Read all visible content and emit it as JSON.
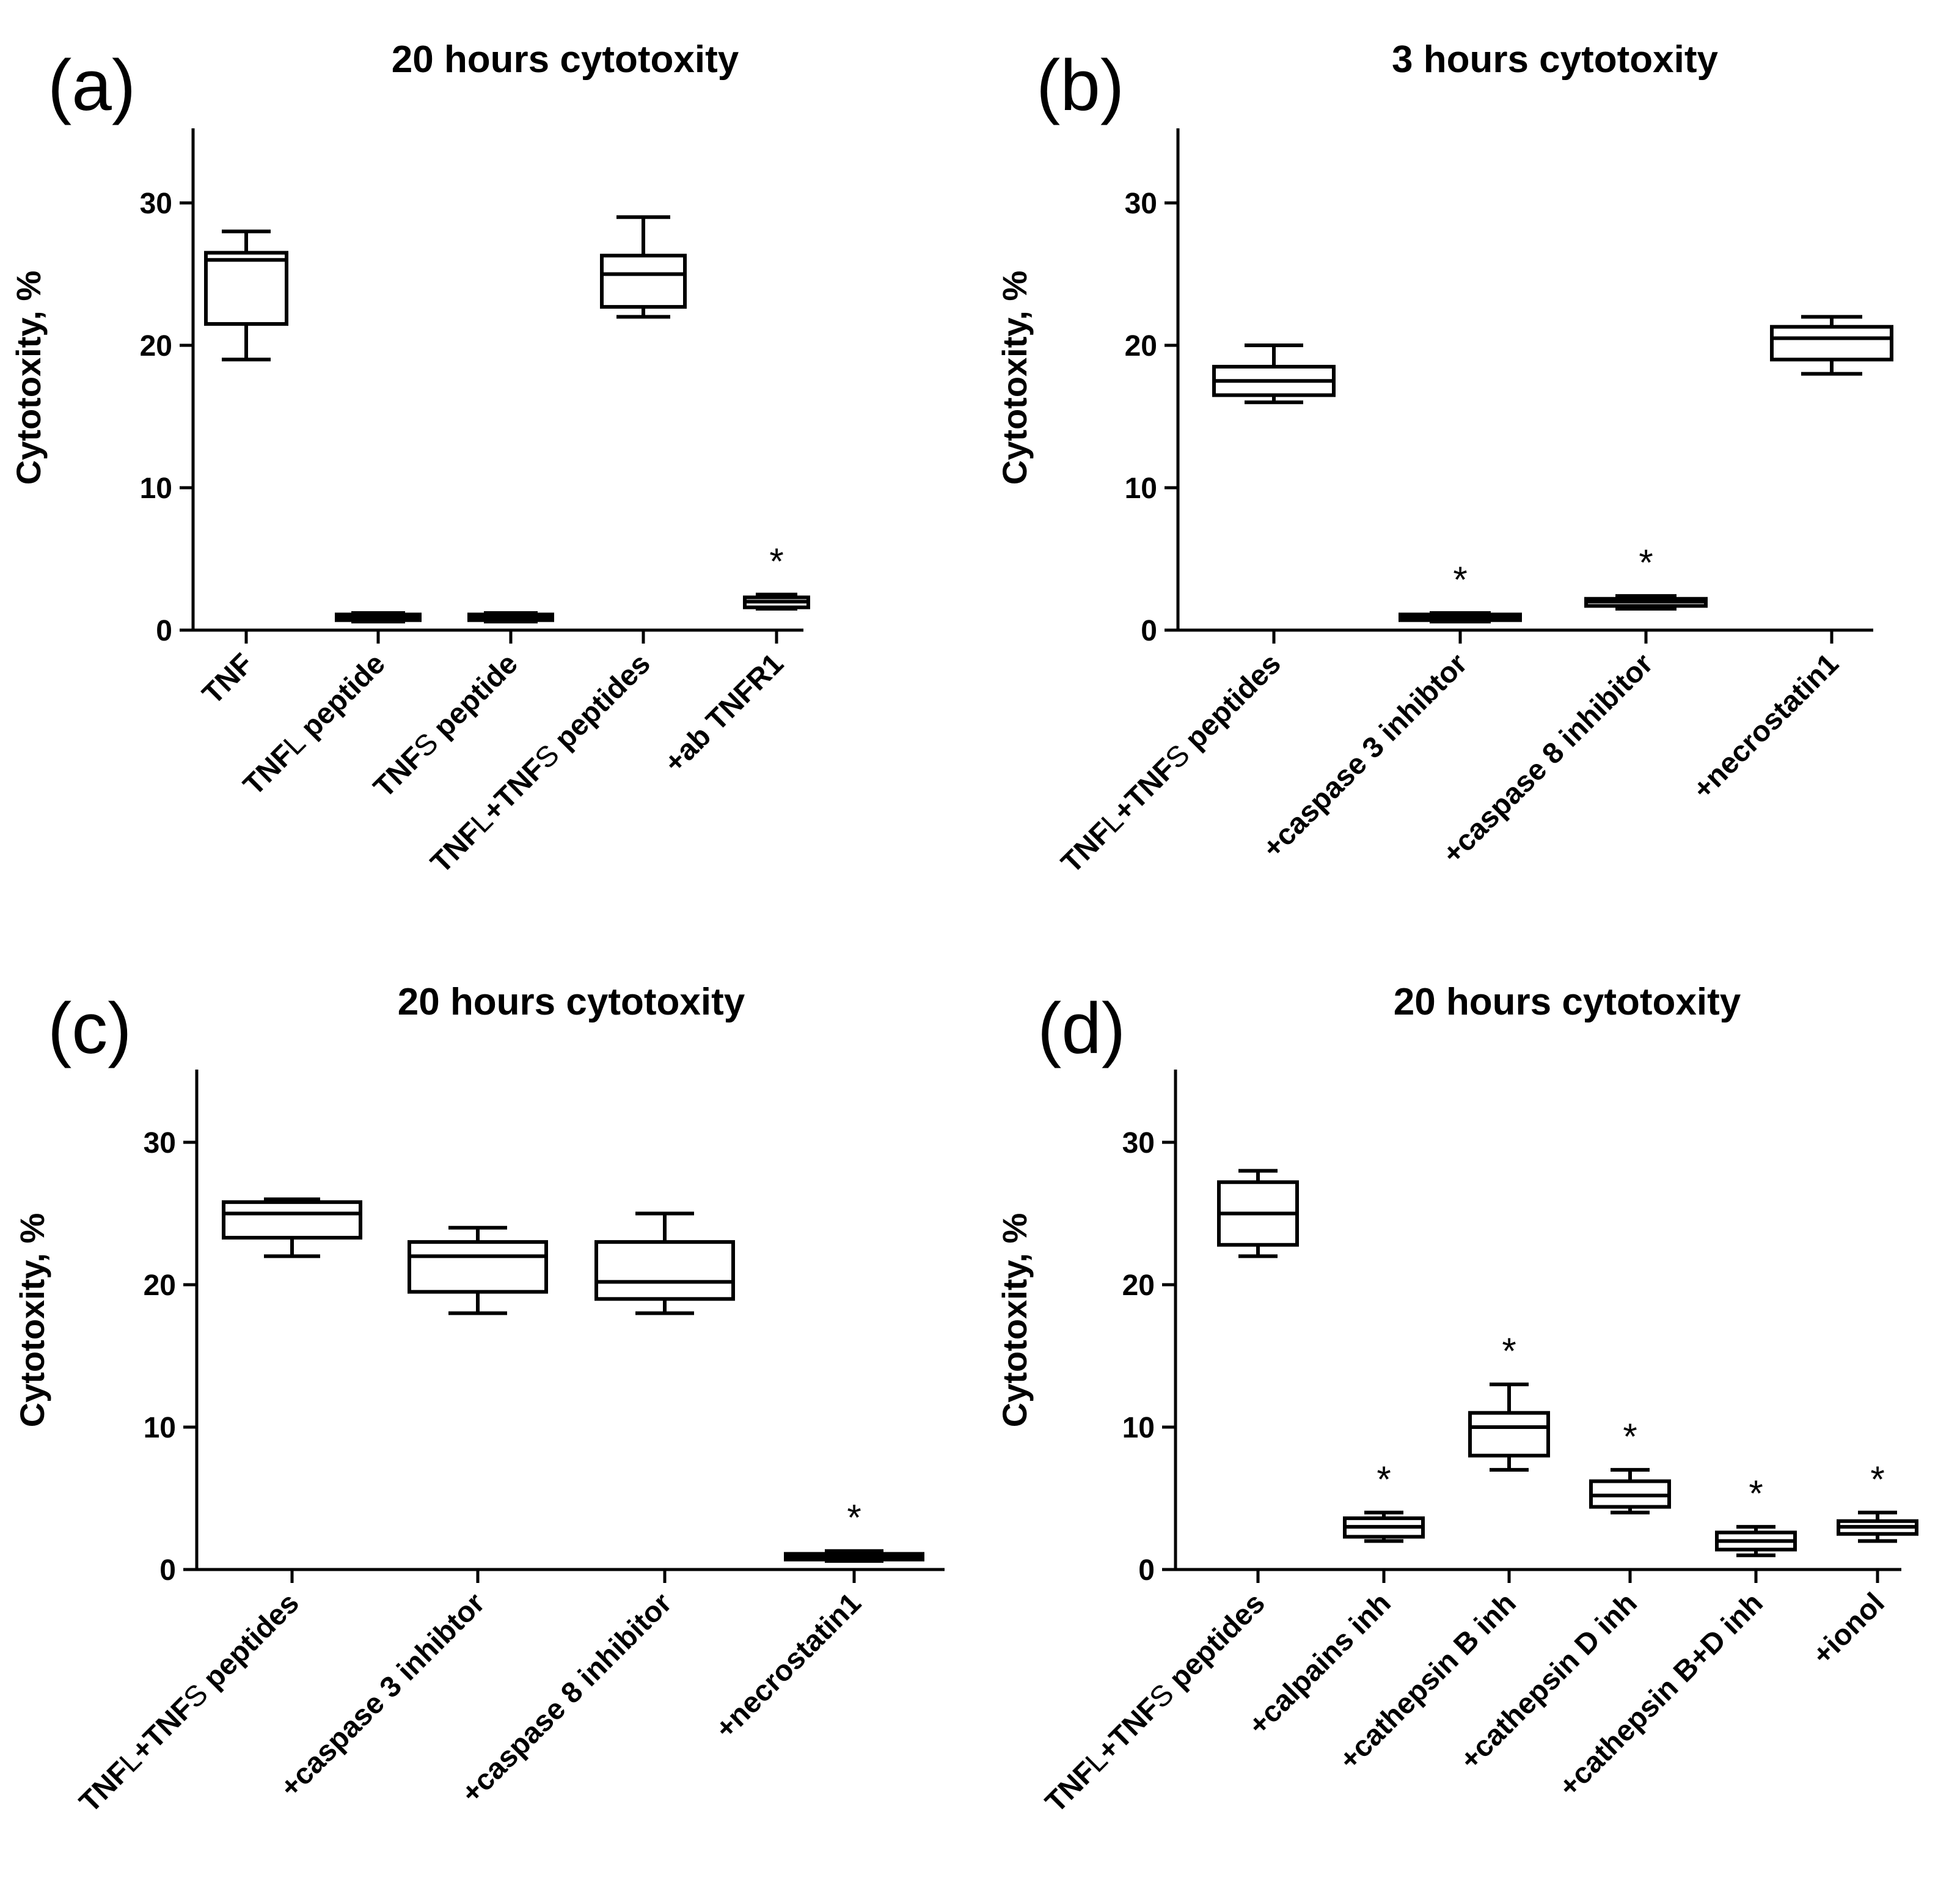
{
  "chart_data": [
    {
      "type": "box",
      "panel": "(a)",
      "title": "20 hours cytotoxity",
      "ylabel": "Cytotoxity, %",
      "xlabel": "",
      "ylim": [
        0,
        35
      ],
      "yticks": [
        "0",
        "10",
        "20",
        "30"
      ],
      "categories": [
        {
          "label": [
            [
              "TNF",
              false
            ]
          ],
          "min": 19,
          "q1": 21.5,
          "median": 26,
          "q3": 26.5,
          "max": 28,
          "star": false
        },
        {
          "label": [
            [
              "TNF",
              false
            ],
            [
              "L",
              true
            ],
            [
              " peptide",
              false
            ]
          ],
          "min": 0.6,
          "q1": 0.7,
          "median": 0.9,
          "q3": 1.1,
          "max": 1.2,
          "star": false
        },
        {
          "label": [
            [
              "TNF",
              false
            ],
            [
              "S",
              true
            ],
            [
              " peptide",
              false
            ]
          ],
          "min": 0.6,
          "q1": 0.7,
          "median": 0.9,
          "q3": 1.1,
          "max": 1.2,
          "star": false
        },
        {
          "label": [
            [
              "TNF",
              false
            ],
            [
              "L",
              true
            ],
            [
              "+TNF",
              false
            ],
            [
              "S",
              true
            ],
            [
              " peptides",
              false
            ]
          ],
          "min": 22,
          "q1": 22.7,
          "median": 25,
          "q3": 26.3,
          "max": 29,
          "star": false
        },
        {
          "label": [
            [
              "+ab TNFR1",
              false
            ]
          ],
          "min": 1.5,
          "q1": 1.6,
          "median": 2,
          "q3": 2.3,
          "max": 2.5,
          "star": true
        }
      ]
    },
    {
      "type": "box",
      "panel": "(b)",
      "title": "3 hours cytotoxity",
      "ylabel": "Cytotoxity, %",
      "xlabel": "",
      "ylim": [
        0,
        35
      ],
      "yticks": [
        "0",
        "10",
        "20",
        "30"
      ],
      "categories": [
        {
          "label": [
            [
              "TNF",
              false
            ],
            [
              "L",
              true
            ],
            [
              "+TNF",
              false
            ],
            [
              "S",
              true
            ],
            [
              " peptides",
              false
            ]
          ],
          "min": 16,
          "q1": 16.5,
          "median": 17.5,
          "q3": 18.5,
          "max": 20,
          "star": false
        },
        {
          "label": [
            [
              "+caspase 3 inhibtor",
              false
            ]
          ],
          "min": 0.6,
          "q1": 0.7,
          "median": 0.9,
          "q3": 1.1,
          "max": 1.2,
          "star": true
        },
        {
          "label": [
            [
              "+caspase 8 inhibitor",
              false
            ]
          ],
          "min": 1.5,
          "q1": 1.7,
          "median": 2,
          "q3": 2.2,
          "max": 2.4,
          "star": true
        },
        {
          "label": [
            [
              "+necrostatin1",
              false
            ]
          ],
          "min": 18,
          "q1": 19,
          "median": 20.5,
          "q3": 21.3,
          "max": 22,
          "star": false
        }
      ]
    },
    {
      "type": "box",
      "panel": "(c)",
      "title": "20 hours cytotoxity",
      "ylabel": "Cytotoxity, %",
      "xlabel": "",
      "ylim": [
        0,
        35
      ],
      "yticks": [
        "0",
        "10",
        "20",
        "30"
      ],
      "categories": [
        {
          "label": [
            [
              "TNF",
              false
            ],
            [
              "L",
              true
            ],
            [
              "+TNF",
              false
            ],
            [
              "S",
              true
            ],
            [
              " peptides",
              false
            ]
          ],
          "min": 22,
          "q1": 23.3,
          "median": 25,
          "q3": 25.8,
          "max": 26,
          "star": false
        },
        {
          "label": [
            [
              "+caspase 3 inhibtor",
              false
            ]
          ],
          "min": 18,
          "q1": 19.5,
          "median": 22,
          "q3": 23,
          "max": 24,
          "star": false
        },
        {
          "label": [
            [
              "+caspase 8 inhibitor",
              false
            ]
          ],
          "min": 18,
          "q1": 19,
          "median": 20.2,
          "q3": 23,
          "max": 25,
          "star": false
        },
        {
          "label": [
            [
              "+necrostatin1",
              false
            ]
          ],
          "min": 0.6,
          "q1": 0.7,
          "median": 0.9,
          "q3": 1.1,
          "max": 1.3,
          "star": true
        }
      ]
    },
    {
      "type": "box",
      "panel": "(d)",
      "title": "20 hours cytotoxity",
      "ylabel": "Cytotoxity, %",
      "xlabel": "",
      "ylim": [
        0,
        35
      ],
      "yticks": [
        "0",
        "10",
        "20",
        "30"
      ],
      "categories": [
        {
          "label": [
            [
              "TNF",
              false
            ],
            [
              "L",
              true
            ],
            [
              "+TNF",
              false
            ],
            [
              "S",
              true
            ],
            [
              " peptides",
              false
            ]
          ],
          "min": 22,
          "q1": 22.8,
          "median": 25,
          "q3": 27.2,
          "max": 28,
          "star": false
        },
        {
          "label": [
            [
              "+calpains inh",
              false
            ]
          ],
          "min": 2,
          "q1": 2.3,
          "median": 3,
          "q3": 3.6,
          "max": 4,
          "star": true
        },
        {
          "label": [
            [
              "+cathepsin B inh",
              false
            ]
          ],
          "min": 7,
          "q1": 8,
          "median": 10,
          "q3": 11,
          "max": 13,
          "star": true
        },
        {
          "label": [
            [
              "+cathepsin D inh",
              false
            ]
          ],
          "min": 4,
          "q1": 4.4,
          "median": 5.2,
          "q3": 6.2,
          "max": 7,
          "star": true
        },
        {
          "label": [
            [
              "+cathepsin B+D inh",
              false
            ]
          ],
          "min": 1,
          "q1": 1.4,
          "median": 2,
          "q3": 2.6,
          "max": 3,
          "star": true
        },
        {
          "label": [
            [
              "+ionol",
              false
            ]
          ],
          "min": 2,
          "q1": 2.5,
          "median": 3,
          "q3": 3.4,
          "max": 4,
          "star": true
        }
      ]
    }
  ],
  "significance_mark": "*"
}
